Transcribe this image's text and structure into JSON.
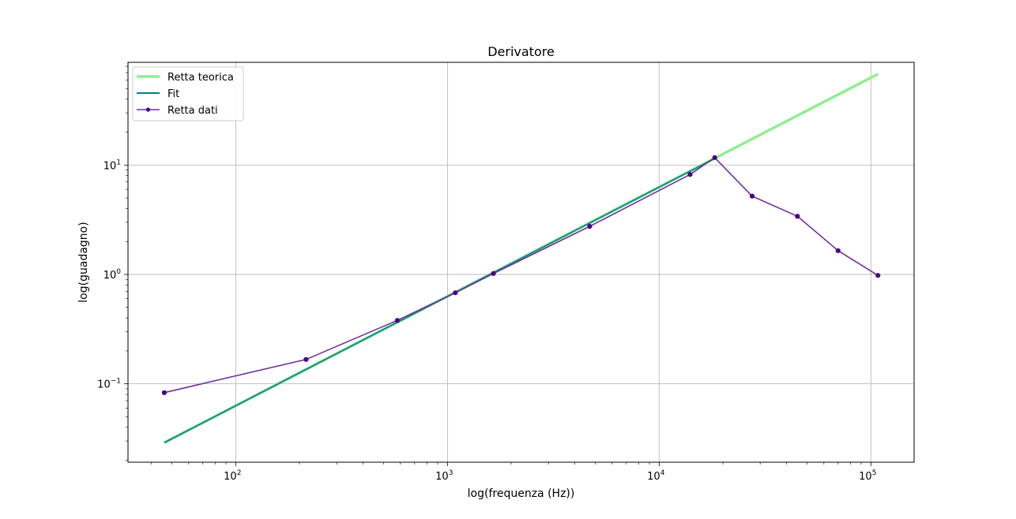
{
  "chart_data": {
    "type": "line",
    "title": "Derivatore",
    "xlabel": "log(frequenza (Hz))",
    "ylabel": "log(guadagno)",
    "xscale": "log",
    "yscale": "log",
    "xlim": [
      31,
      160000
    ],
    "ylim": [
      0.0192,
      87
    ],
    "grid": true,
    "legend_position": "top-left",
    "x_ticks": [
      {
        "base": "10",
        "exp": "2",
        "value": 100
      },
      {
        "base": "10",
        "exp": "3",
        "value": 1000
      },
      {
        "base": "10",
        "exp": "4",
        "value": 10000
      },
      {
        "base": "10",
        "exp": "5",
        "value": 100000
      }
    ],
    "y_ticks": [
      {
        "base": "10",
        "exp": "−1",
        "value": 0.1
      },
      {
        "base": "10",
        "exp": "0",
        "value": 1
      },
      {
        "base": "10",
        "exp": "1",
        "value": 10
      }
    ],
    "series": [
      {
        "name": "Retta teorica",
        "color": "#90ee90",
        "style": "line-thick",
        "x": [
          46,
          108000
        ],
        "y": [
          0.029,
          68
        ]
      },
      {
        "name": "Fit",
        "color": "#008080",
        "style": "line",
        "x": [
          46,
          18300
        ],
        "y": [
          0.029,
          11.5
        ]
      },
      {
        "name": "Retta dati",
        "color": "#7030a0",
        "style": "line-markers",
        "x": [
          46,
          215,
          580,
          1090,
          1650,
          4700,
          14000,
          18300,
          27500,
          45000,
          70000,
          108000
        ],
        "y": [
          0.083,
          0.167,
          0.38,
          0.68,
          1.02,
          2.75,
          8.2,
          11.7,
          5.2,
          3.4,
          1.65,
          0.98
        ]
      }
    ]
  }
}
